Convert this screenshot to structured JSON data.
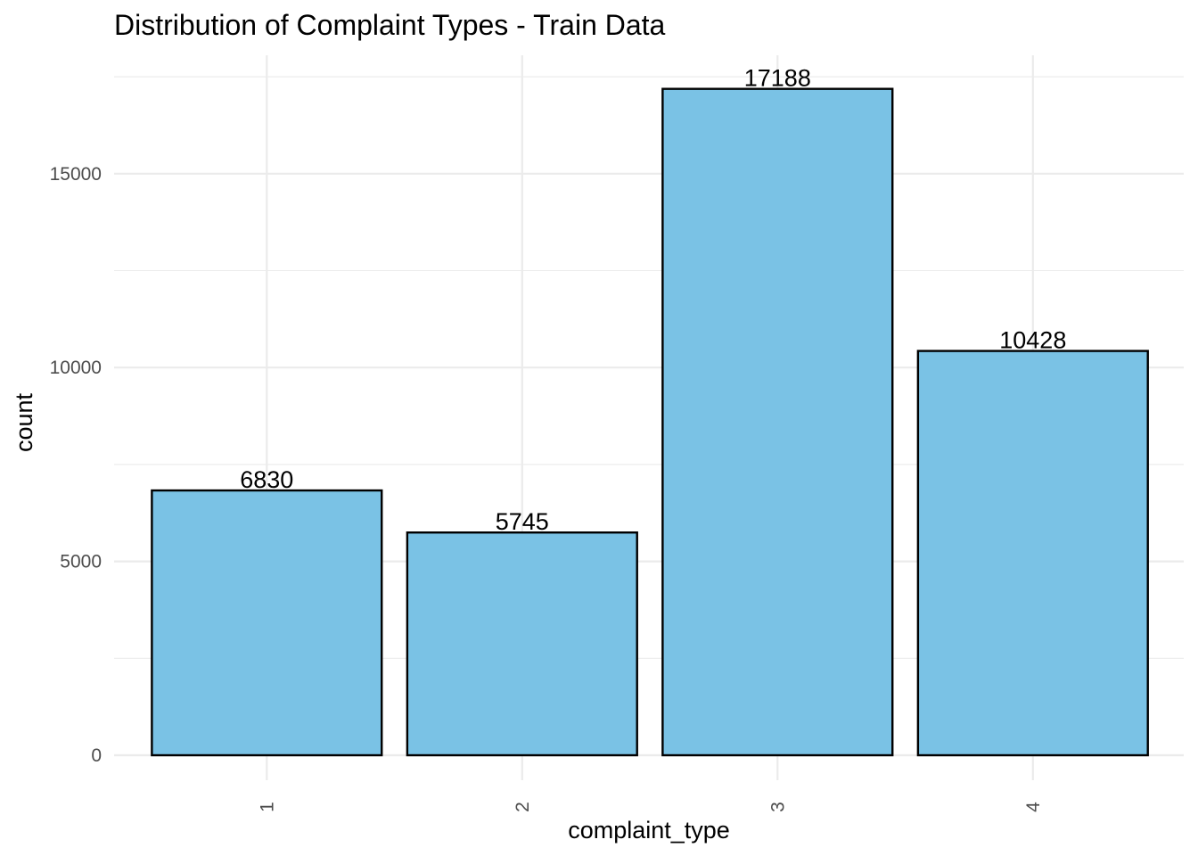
{
  "chart_data": {
    "type": "bar",
    "title": "Distribution of Complaint Types - Train Data",
    "xlabel": "complaint_type",
    "ylabel": "count",
    "categories": [
      "1",
      "2",
      "3",
      "4"
    ],
    "values": [
      6830,
      5745,
      17188,
      10428
    ],
    "data_labels": [
      "6830",
      "5745",
      "17188",
      "10428"
    ],
    "ylim": [
      0,
      18000
    ],
    "y_ticks": [
      0,
      5000,
      10000,
      15000
    ],
    "y_tick_labels": [
      "0",
      "5000",
      "10000",
      "15000"
    ],
    "y_minor_ticks": [
      2500,
      7500,
      12500,
      17500
    ],
    "grid": true,
    "legend": "none",
    "bar_fill": "#7AC2E5",
    "bar_outline": "#000000"
  }
}
